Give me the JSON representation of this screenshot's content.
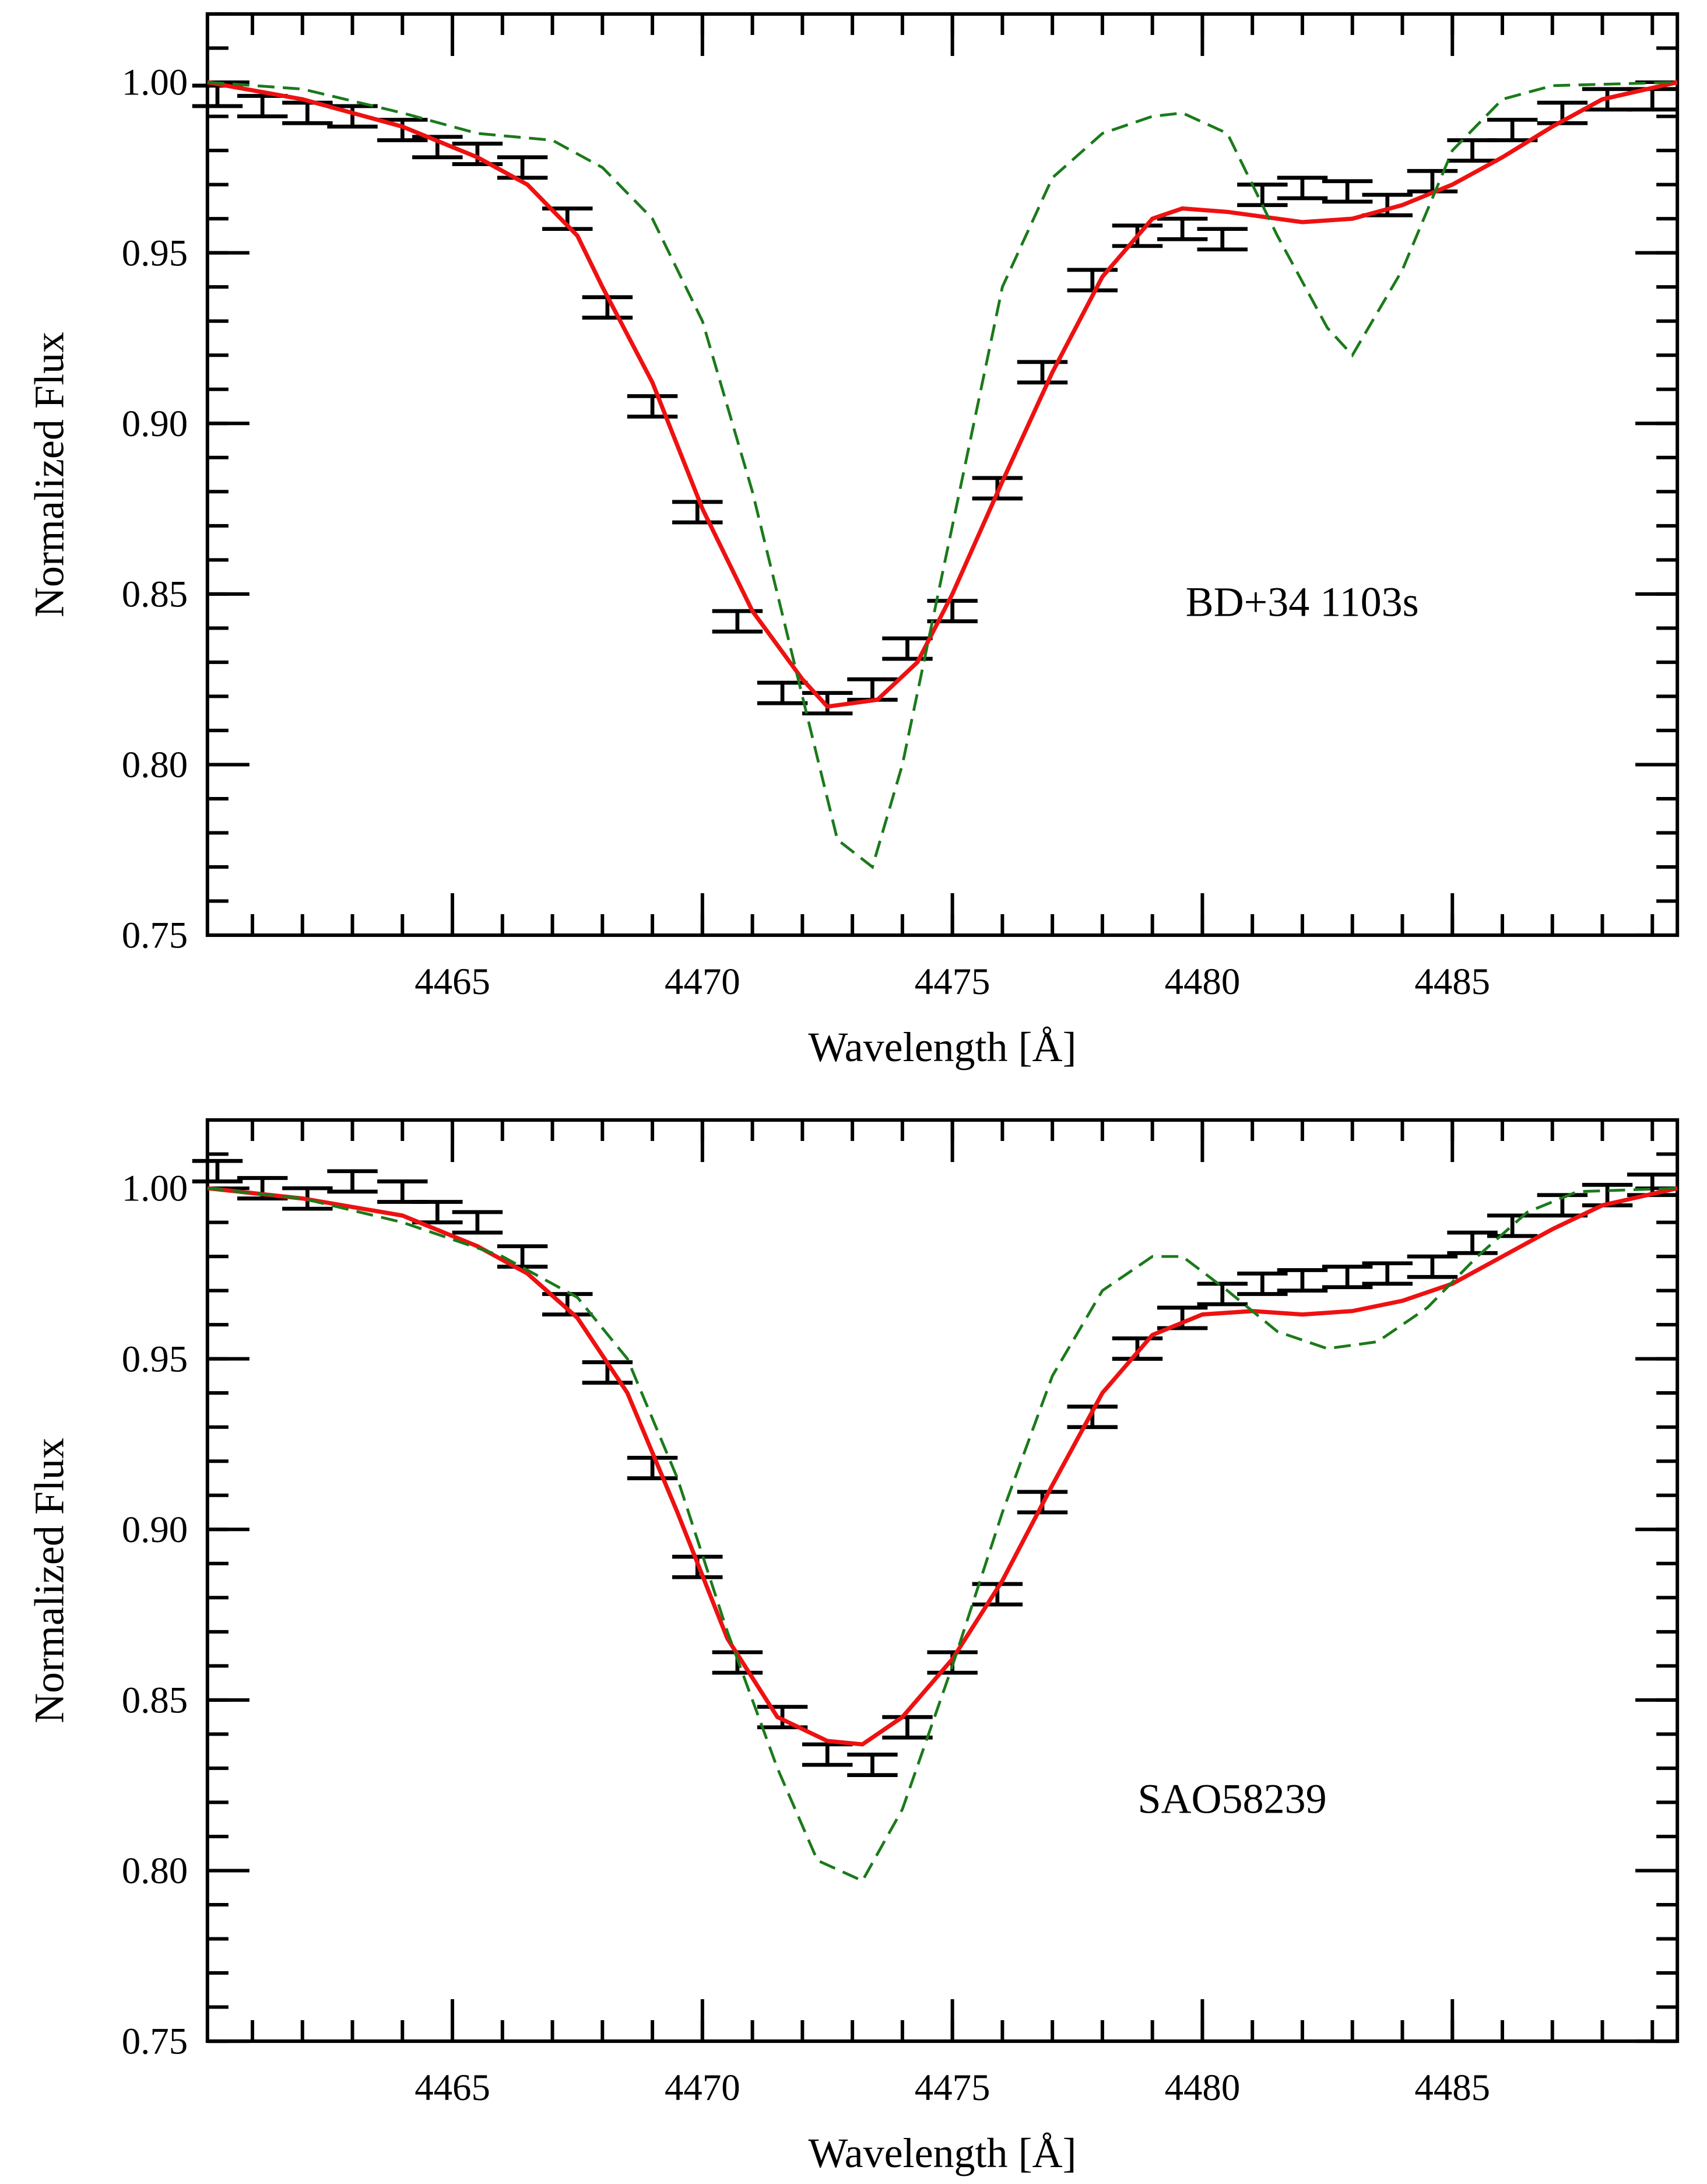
{
  "chart_data": [
    {
      "type": "errorbar_line",
      "annotation": "BD+34 1103s",
      "xlabel": "Wavelength [Å]",
      "ylabel": "Normalized Flux",
      "xlim": [
        4460.1,
        4489.5
      ],
      "ylim": [
        0.75,
        1.02
      ],
      "xticks": [
        4465,
        4470,
        4475,
        4480,
        4485
      ],
      "yticks": [
        {
          "value": 0.75,
          "label": "0.75"
        },
        {
          "value": 0.8,
          "label": "0.80"
        },
        {
          "value": 0.85,
          "label": "0.85"
        },
        {
          "value": 0.9,
          "label": "0.90"
        },
        {
          "value": 0.95,
          "label": "0.95"
        },
        {
          "value": 1,
          "label": "1.00"
        }
      ],
      "xminor": 1,
      "yminor": 0.01,
      "series": [
        {
          "kind": "errorbar",
          "color": "#000000",
          "x": [
            4460.3,
            4461.2,
            4462.1,
            4463.0,
            4464.0,
            4464.7,
            4465.5,
            4466.4,
            4467.3,
            4468.1,
            4469.0,
            4469.9,
            4470.7,
            4471.6,
            4472.5,
            4473.4,
            4474.1,
            4475.0,
            4475.9,
            4476.8,
            4477.8,
            4478.7,
            4479.6,
            4480.4,
            4481.2,
            4482.0,
            4482.9,
            4483.7,
            4484.6,
            4485.4,
            4486.2,
            4487.2,
            4488.1,
            4489.0
          ],
          "values": [
            0.996,
            0.993,
            0.991,
            0.99,
            0.986,
            0.981,
            0.979,
            0.975,
            0.96,
            0.934,
            0.905,
            0.874,
            0.842,
            0.821,
            0.818,
            0.822,
            0.834,
            0.845,
            0.881,
            0.915,
            0.942,
            0.955,
            0.957,
            0.954,
            0.967,
            0.969,
            0.968,
            0.964,
            0.971,
            0.98,
            0.986,
            0.991,
            0.995,
            0.995
          ],
          "errors": [
            0.003,
            0.003,
            0.003,
            0.003,
            0.003,
            0.003,
            0.003,
            0.003,
            0.003,
            0.003,
            0.003,
            0.003,
            0.003,
            0.003,
            0.003,
            0.003,
            0.003,
            0.003,
            0.003,
            0.003,
            0.003,
            0.003,
            0.003,
            0.003,
            0.003,
            0.003,
            0.003,
            0.003,
            0.003,
            0.003,
            0.003,
            0.003,
            0.003,
            0.003
          ]
        },
        {
          "kind": "line",
          "color": "#ee1111",
          "dashed": false,
          "x": [
            4460.1,
            4462,
            4464,
            4465.5,
            4466.5,
            4467.5,
            4468,
            4469,
            4470,
            4471,
            4472,
            4472.5,
            4473.5,
            4474.3,
            4475,
            4476,
            4477,
            4478,
            4479,
            4479.6,
            4480.5,
            4482,
            4483,
            4484,
            4485,
            4486,
            4487,
            4488,
            4489.5
          ],
          "values": [
            1.0,
            0.995,
            0.987,
            0.978,
            0.97,
            0.955,
            0.94,
            0.912,
            0.875,
            0.845,
            0.825,
            0.817,
            0.819,
            0.83,
            0.85,
            0.883,
            0.915,
            0.943,
            0.96,
            0.963,
            0.962,
            0.959,
            0.96,
            0.964,
            0.97,
            0.978,
            0.987,
            0.995,
            1.0
          ]
        },
        {
          "kind": "line",
          "color": "#1a7a1a",
          "dashed": true,
          "x": [
            4460.1,
            4462,
            4464,
            4465.5,
            4467,
            4468,
            4469,
            4470,
            4471,
            4472,
            4472.7,
            4473.4,
            4474,
            4475,
            4476,
            4477,
            4478,
            4479,
            4479.6,
            4480.5,
            4481.5,
            4482.5,
            4483,
            4484,
            4485,
            4486,
            4487,
            4489.5
          ],
          "values": [
            1.0,
            0.998,
            0.991,
            0.985,
            0.983,
            0.975,
            0.96,
            0.93,
            0.88,
            0.82,
            0.778,
            0.77,
            0.8,
            0.87,
            0.94,
            0.972,
            0.985,
            0.99,
            0.991,
            0.985,
            0.955,
            0.928,
            0.92,
            0.945,
            0.98,
            0.995,
            0.999,
            1.0
          ]
        }
      ]
    },
    {
      "type": "errorbar_line",
      "annotation": "SAO58239",
      "xlabel": "Wavelength [Å]",
      "ylabel": "Normalized Flux",
      "xlim": [
        4460.1,
        4489.5
      ],
      "ylim": [
        0.75,
        1.02
      ],
      "xticks": [
        4465,
        4470,
        4475,
        4480,
        4485
      ],
      "yticks": [
        {
          "value": 0.75,
          "label": "0.75"
        },
        {
          "value": 0.8,
          "label": "0.80"
        },
        {
          "value": 0.85,
          "label": "0.85"
        },
        {
          "value": 0.9,
          "label": "0.90"
        },
        {
          "value": 0.95,
          "label": "0.95"
        },
        {
          "value": 1,
          "label": "1.00"
        }
      ],
      "xminor": 1,
      "yminor": 0.01,
      "series": [
        {
          "kind": "errorbar",
          "color": "#000000",
          "x": [
            4460.3,
            4461.2,
            4462.1,
            4463.0,
            4464.0,
            4464.7,
            4465.5,
            4466.4,
            4467.3,
            4468.1,
            4469.0,
            4469.9,
            4470.7,
            4471.6,
            4472.5,
            4473.4,
            4474.1,
            4475.0,
            4475.9,
            4476.8,
            4477.8,
            4478.7,
            4479.6,
            4480.4,
            4481.2,
            4482.0,
            4482.9,
            4483.7,
            4484.6,
            4485.4,
            4486.2,
            4487.2,
            4488.1,
            4489.0
          ],
          "values": [
            1.005,
            1.0,
            0.997,
            1.002,
            0.999,
            0.993,
            0.99,
            0.98,
            0.966,
            0.946,
            0.918,
            0.889,
            0.861,
            0.845,
            0.834,
            0.831,
            0.842,
            0.861,
            0.881,
            0.908,
            0.933,
            0.953,
            0.962,
            0.969,
            0.972,
            0.973,
            0.974,
            0.975,
            0.977,
            0.984,
            0.989,
            0.995,
            0.998,
            1.001
          ],
          "errors": [
            0.003,
            0.003,
            0.003,
            0.003,
            0.003,
            0.003,
            0.003,
            0.003,
            0.003,
            0.003,
            0.003,
            0.003,
            0.003,
            0.003,
            0.003,
            0.003,
            0.003,
            0.003,
            0.003,
            0.003,
            0.003,
            0.003,
            0.003,
            0.003,
            0.003,
            0.003,
            0.003,
            0.003,
            0.003,
            0.003,
            0.003,
            0.003,
            0.003,
            0.003
          ]
        },
        {
          "kind": "line",
          "color": "#ee1111",
          "dashed": false,
          "x": [
            4460.1,
            4462,
            4464,
            4465.5,
            4466.5,
            4467.5,
            4468.5,
            4469.5,
            4470.5,
            4471.5,
            4472.5,
            4473.2,
            4474,
            4475,
            4476,
            4477,
            4478,
            4479,
            4480,
            4481,
            4482,
            4483,
            4484,
            4485,
            4486,
            4487,
            4488,
            4489.5
          ],
          "values": [
            1.0,
            0.997,
            0.992,
            0.983,
            0.975,
            0.962,
            0.94,
            0.905,
            0.868,
            0.845,
            0.838,
            0.837,
            0.845,
            0.862,
            0.885,
            0.913,
            0.94,
            0.957,
            0.963,
            0.964,
            0.963,
            0.964,
            0.967,
            0.972,
            0.98,
            0.988,
            0.995,
            1.0
          ]
        },
        {
          "kind": "line",
          "color": "#1a7a1a",
          "dashed": true,
          "x": [
            4460.1,
            4462,
            4464,
            4466,
            4467.5,
            4468.5,
            4469.5,
            4470.5,
            4471.5,
            4472.3,
            4473.2,
            4474,
            4475,
            4476,
            4477,
            4478,
            4479,
            4479.6,
            4480.5,
            4481.5,
            4482.5,
            4483.5,
            4484.5,
            4485.5,
            4486.5,
            4487.5,
            4489.5
          ],
          "values": [
            1.0,
            0.997,
            0.99,
            0.98,
            0.968,
            0.95,
            0.915,
            0.87,
            0.83,
            0.803,
            0.797,
            0.818,
            0.86,
            0.905,
            0.945,
            0.97,
            0.98,
            0.98,
            0.97,
            0.958,
            0.953,
            0.955,
            0.965,
            0.98,
            0.993,
            0.999,
            1.0
          ]
        }
      ]
    }
  ]
}
